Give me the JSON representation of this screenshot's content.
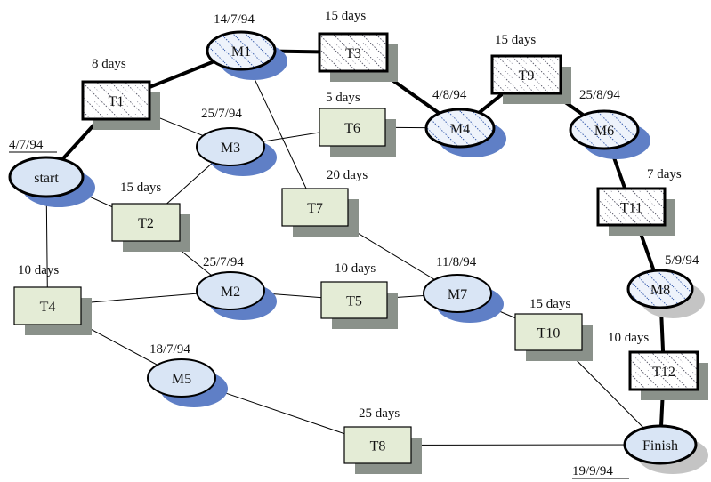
{
  "colors": {
    "task_fill": "#e4ecd6",
    "milestone_fill": "#d9e5f5",
    "milestone_shadow": "#5f7fc6",
    "finish_shadow": "#c4c4c4",
    "box_shadow": "#8a918a",
    "line": "#000000"
  },
  "nodes": [
    {
      "id": "start",
      "label": "start",
      "kind": "milestone",
      "critical": true
    },
    {
      "id": "M1",
      "label": "M1",
      "kind": "milestone",
      "critical": true,
      "hatched": true
    },
    {
      "id": "M3",
      "label": "M3",
      "kind": "milestone",
      "critical": false
    },
    {
      "id": "M4",
      "label": "M4",
      "kind": "milestone",
      "critical": true,
      "hatched": true
    },
    {
      "id": "M6",
      "label": "M6",
      "kind": "milestone",
      "critical": true,
      "hatched": true
    },
    {
      "id": "M2",
      "label": "M2",
      "kind": "milestone",
      "critical": false
    },
    {
      "id": "M7",
      "label": "M7",
      "kind": "milestone",
      "critical": false
    },
    {
      "id": "M8",
      "label": "M8",
      "kind": "milestone",
      "critical": true,
      "hatched": true,
      "grey_shadow": true
    },
    {
      "id": "M5",
      "label": "M5",
      "kind": "milestone",
      "critical": false
    },
    {
      "id": "Finish",
      "label": "Finish",
      "kind": "milestone",
      "critical": true,
      "grey_shadow": true
    },
    {
      "id": "T1",
      "label": "T1",
      "kind": "task",
      "critical": true,
      "hatched": true
    },
    {
      "id": "T3",
      "label": "T3",
      "kind": "task",
      "critical": true,
      "hatched": true
    },
    {
      "id": "T9",
      "label": "T9",
      "kind": "task",
      "critical": true,
      "hatched": true
    },
    {
      "id": "T11",
      "label": "T11",
      "kind": "task",
      "critical": true,
      "hatched": true
    },
    {
      "id": "T12",
      "label": "T12",
      "kind": "task",
      "critical": true,
      "hatched": true
    },
    {
      "id": "T6",
      "label": "T6",
      "kind": "task",
      "critical": false
    },
    {
      "id": "T2",
      "label": "T2",
      "kind": "task",
      "critical": false
    },
    {
      "id": "T7",
      "label": "T7",
      "kind": "task",
      "critical": false
    },
    {
      "id": "T4",
      "label": "T4",
      "kind": "task",
      "critical": false
    },
    {
      "id": "T5",
      "label": "T5",
      "kind": "task",
      "critical": false
    },
    {
      "id": "T10",
      "label": "T10",
      "kind": "task",
      "critical": false
    },
    {
      "id": "T8",
      "label": "T8",
      "kind": "task",
      "critical": false
    }
  ],
  "edges": [
    {
      "from": "start",
      "to": "T1",
      "critical": true
    },
    {
      "from": "T1",
      "to": "M1",
      "critical": true
    },
    {
      "from": "M1",
      "to": "T3",
      "critical": true
    },
    {
      "from": "T3",
      "to": "M4",
      "critical": true
    },
    {
      "from": "M4",
      "to": "T9",
      "critical": true
    },
    {
      "from": "T9",
      "to": "M6",
      "critical": true
    },
    {
      "from": "M6",
      "to": "T11",
      "critical": true
    },
    {
      "from": "T11",
      "to": "M8",
      "critical": true
    },
    {
      "from": "M8",
      "to": "T12",
      "critical": true
    },
    {
      "from": "T12",
      "to": "Finish",
      "critical": true
    },
    {
      "from": "T1",
      "to": "M3",
      "critical": false
    },
    {
      "from": "M3",
      "to": "T6",
      "critical": false
    },
    {
      "from": "T6",
      "to": "M4",
      "critical": false
    },
    {
      "from": "start",
      "to": "T2",
      "critical": false
    },
    {
      "from": "T2",
      "to": "M3",
      "critical": false
    },
    {
      "from": "T2",
      "to": "M2",
      "critical": false
    },
    {
      "from": "M1",
      "to": "T7",
      "critical": false
    },
    {
      "from": "T7",
      "to": "M7",
      "critical": false
    },
    {
      "from": "start",
      "to": "T4",
      "critical": false
    },
    {
      "from": "T4",
      "to": "M2",
      "critical": false
    },
    {
      "from": "M2",
      "to": "T5",
      "critical": false
    },
    {
      "from": "T5",
      "to": "M7",
      "critical": false
    },
    {
      "from": "M7",
      "to": "T10",
      "critical": false
    },
    {
      "from": "T10",
      "to": "Finish",
      "critical": false
    },
    {
      "from": "T4",
      "to": "M5",
      "critical": false
    },
    {
      "from": "M5",
      "to": "T8",
      "critical": false
    },
    {
      "from": "T8",
      "to": "Finish",
      "critical": false
    }
  ],
  "annotations": [
    {
      "id": "start-date",
      "text": "4/7/94",
      "underline": true
    },
    {
      "id": "M1-date",
      "text": "14/7/94"
    },
    {
      "id": "M3-date",
      "text": "25/7/94"
    },
    {
      "id": "M4-date",
      "text": "4/8/94"
    },
    {
      "id": "M6-date",
      "text": "25/8/94"
    },
    {
      "id": "M2-date",
      "text": "25/7/94"
    },
    {
      "id": "M7-date",
      "text": "11/8/94"
    },
    {
      "id": "M8-date",
      "text": "5/9/94"
    },
    {
      "id": "M5-date",
      "text": "18/7/94"
    },
    {
      "id": "Finish-date",
      "text": "19/9/94",
      "underline": true
    },
    {
      "id": "T1-duration",
      "text": "8 days"
    },
    {
      "id": "T3-duration",
      "text": "15 days"
    },
    {
      "id": "T9-duration",
      "text": "15 days"
    },
    {
      "id": "T6-duration",
      "text": "5 days"
    },
    {
      "id": "T2-duration",
      "text": "15 days"
    },
    {
      "id": "T7-duration",
      "text": "20 days"
    },
    {
      "id": "T11-duration",
      "text": "7 days"
    },
    {
      "id": "T4-duration",
      "text": "10 days"
    },
    {
      "id": "T5-duration",
      "text": "10 days"
    },
    {
      "id": "T10-duration",
      "text": "15 days"
    },
    {
      "id": "T12-duration",
      "text": "10 days"
    },
    {
      "id": "T8-duration",
      "text": "25 days"
    }
  ]
}
